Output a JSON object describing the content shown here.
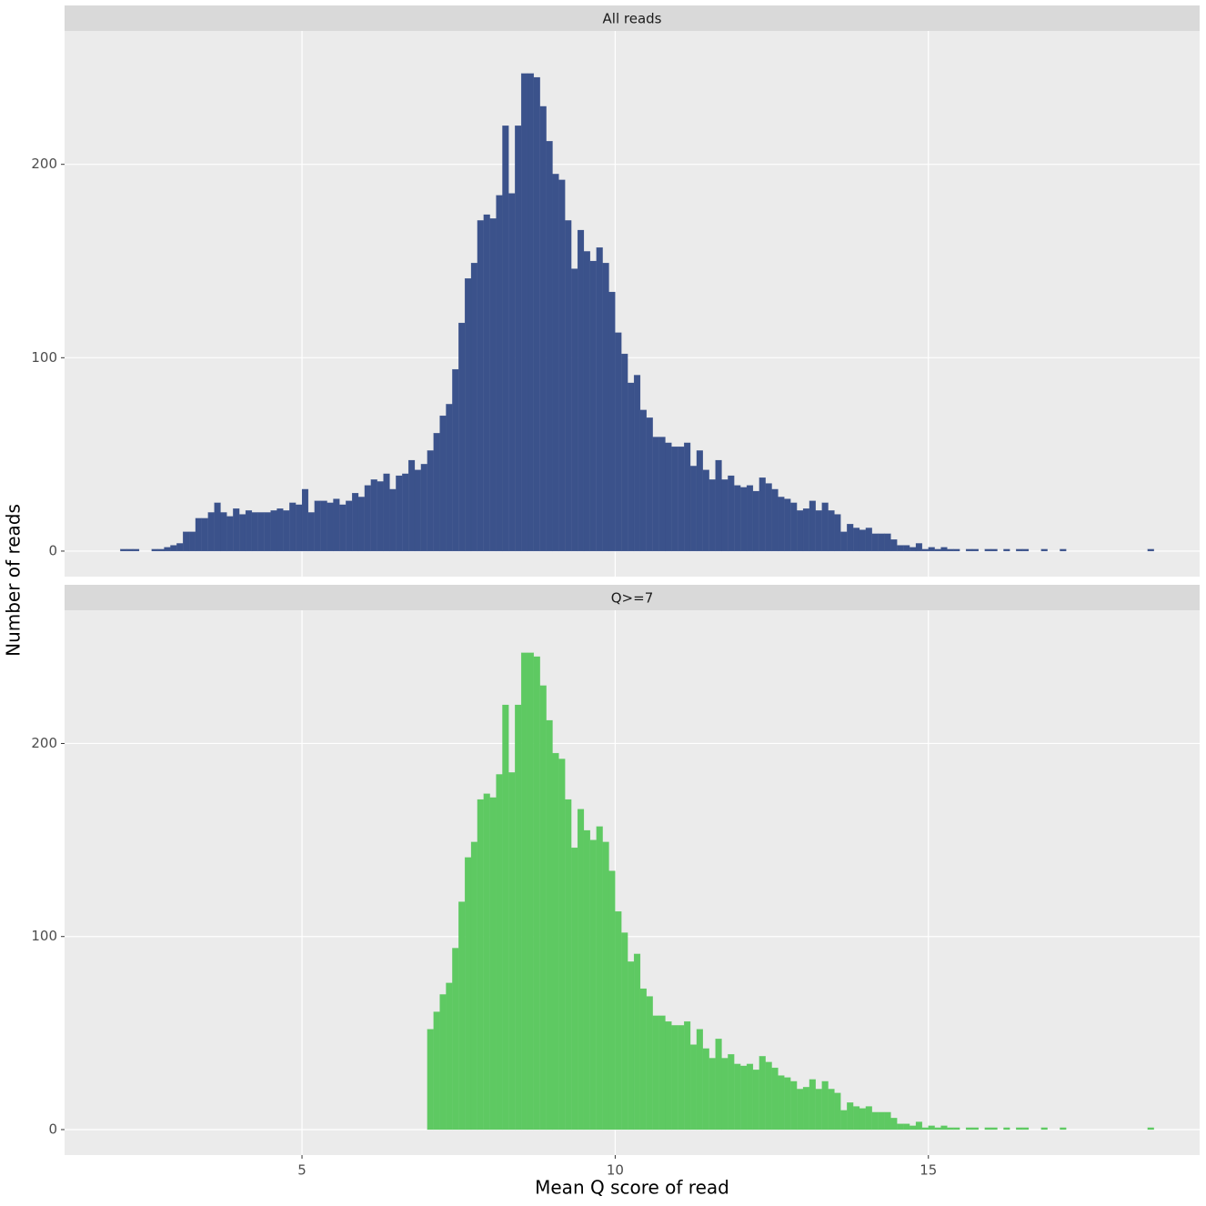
{
  "chart_data": [
    {
      "type": "histogram",
      "title": "All reads",
      "color": "#3b528b",
      "ylabel": "Number of reads",
      "bins": [
        2,
        2.1,
        2.2,
        2.3,
        2.4,
        2.5,
        2.6,
        2.7,
        2.8,
        2.9,
        3,
        3.1,
        3.2,
        3.3,
        3.4,
        3.5,
        3.6,
        3.7,
        3.8,
        3.9,
        4,
        4.1,
        4.2,
        4.3,
        4.4,
        4.5,
        4.6,
        4.7,
        4.8,
        4.9,
        5,
        5.1,
        5.2,
        5.3,
        5.4,
        5.5,
        5.6,
        5.7,
        5.8,
        5.9,
        6,
        6.1,
        6.2,
        6.3,
        6.4,
        6.5,
        6.6,
        6.7,
        6.8,
        6.9,
        7,
        7.1,
        7.2,
        7.3,
        7.4,
        7.5,
        7.6,
        7.7,
        7.8,
        7.9,
        8,
        8.1,
        8.2,
        8.3,
        8.4,
        8.5,
        8.6,
        8.7,
        8.8,
        8.9,
        9,
        9.1,
        9.2,
        9.3,
        9.4,
        9.5,
        9.6,
        9.7,
        9.8,
        9.9,
        10,
        10.1,
        10.2,
        10.3,
        10.4,
        10.5,
        10.6,
        10.7,
        10.8,
        10.9,
        11,
        11.1,
        11.2,
        11.3,
        11.4,
        11.5,
        11.6,
        11.7,
        11.8,
        11.9,
        12,
        12.1,
        12.2,
        12.3,
        12.4,
        12.5,
        12.6,
        12.7,
        12.8,
        12.9,
        13,
        13.1,
        13.2,
        13.3,
        13.4,
        13.5,
        13.6,
        13.7,
        13.8,
        13.9,
        14,
        14.1,
        14.2,
        14.3,
        14.4,
        14.5,
        14.6,
        14.7,
        14.8,
        14.9,
        15,
        15.1,
        15.2,
        15.3,
        15.4,
        15.5,
        15.6,
        15.7,
        15.8,
        15.9,
        16,
        16.1,
        16.2,
        16.3,
        16.4,
        16.5,
        16.6,
        16.7,
        16.8,
        16.9,
        17,
        17.1,
        17.2,
        17.3,
        17.4,
        17.5,
        17.6,
        17.7,
        17.8,
        17.9,
        18,
        18.1,
        18.2,
        18.3,
        18.4,
        18.5,
        18.6
      ],
      "values": [
        0,
        1,
        1,
        1,
        0,
        0,
        1,
        1,
        2,
        3,
        4,
        10,
        10,
        17,
        17,
        20,
        25,
        20,
        18,
        22,
        19,
        21,
        20,
        20,
        20,
        21,
        22,
        21,
        25,
        24,
        32,
        20,
        26,
        26,
        25,
        27,
        24,
        26,
        30,
        28,
        34,
        37,
        36,
        40,
        32,
        39,
        40,
        47,
        42,
        45,
        52,
        61,
        70,
        76,
        94,
        118,
        141,
        149,
        171,
        174,
        172,
        184,
        220,
        185,
        220,
        247,
        247,
        245,
        230,
        212,
        195,
        192,
        171,
        146,
        166,
        155,
        150,
        157,
        149,
        134,
        113,
        102,
        87,
        91,
        73,
        69,
        59,
        59,
        56,
        54,
        54,
        56,
        44,
        52,
        42,
        37,
        47,
        37,
        39,
        34,
        33,
        34,
        31,
        38,
        35,
        32,
        28,
        27,
        25,
        21,
        22,
        26,
        21,
        25,
        21,
        19,
        10,
        14,
        12,
        11,
        12,
        9,
        9,
        9,
        6,
        3,
        3,
        2,
        4,
        1,
        2,
        1,
        2,
        1,
        1,
        0,
        1,
        1,
        0,
        1,
        1,
        0,
        1,
        0,
        1,
        1,
        0,
        0,
        1,
        0,
        0,
        1,
        0,
        0,
        0,
        0,
        0,
        0,
        0,
        0,
        0,
        0,
        0,
        0,
        0,
        1
      ],
      "xlim": [
        1.21,
        19.33
      ],
      "ylim": [
        -13.2,
        269
      ],
      "xticks": [
        5,
        10,
        15
      ],
      "yticks": [
        0,
        100,
        200
      ],
      "grid": true
    },
    {
      "type": "histogram",
      "title": "Q>=7",
      "color": "#5ec962",
      "xlabel": "Mean Q score of read",
      "bins": [
        7,
        7.1,
        7.2,
        7.3,
        7.4,
        7.5,
        7.6,
        7.7,
        7.8,
        7.9,
        8,
        8.1,
        8.2,
        8.3,
        8.4,
        8.5,
        8.6,
        8.7,
        8.8,
        8.9,
        9,
        9.1,
        9.2,
        9.3,
        9.4,
        9.5,
        9.6,
        9.7,
        9.8,
        9.9,
        10,
        10.1,
        10.2,
        10.3,
        10.4,
        10.5,
        10.6,
        10.7,
        10.8,
        10.9,
        11,
        11.1,
        11.2,
        11.3,
        11.4,
        11.5,
        11.6,
        11.7,
        11.8,
        11.9,
        12,
        12.1,
        12.2,
        12.3,
        12.4,
        12.5,
        12.6,
        12.7,
        12.8,
        12.9,
        13,
        13.1,
        13.2,
        13.3,
        13.4,
        13.5,
        13.6,
        13.7,
        13.8,
        13.9,
        14,
        14.1,
        14.2,
        14.3,
        14.4,
        14.5,
        14.6,
        14.7,
        14.8,
        14.9,
        15,
        15.1,
        15.2,
        15.3,
        15.4,
        15.5,
        15.6,
        15.7,
        15.8,
        15.9,
        16,
        16.1,
        16.2,
        16.3,
        16.4,
        16.5,
        16.6,
        16.7,
        16.8,
        16.9,
        17,
        17.1,
        17.2,
        17.3,
        17.4,
        17.5,
        17.6,
        17.7,
        17.8,
        17.9,
        18,
        18.1,
        18.2,
        18.3,
        18.4,
        18.5,
        18.6
      ],
      "values": [
        52,
        61,
        70,
        76,
        94,
        118,
        141,
        149,
        171,
        174,
        172,
        184,
        220,
        185,
        220,
        247,
        247,
        245,
        230,
        212,
        195,
        192,
        171,
        146,
        166,
        155,
        150,
        157,
        149,
        134,
        113,
        102,
        87,
        91,
        73,
        69,
        59,
        59,
        56,
        54,
        54,
        56,
        44,
        52,
        42,
        37,
        47,
        37,
        39,
        34,
        33,
        34,
        31,
        38,
        35,
        32,
        28,
        27,
        25,
        21,
        22,
        26,
        21,
        25,
        21,
        19,
        10,
        14,
        12,
        11,
        12,
        9,
        9,
        9,
        6,
        3,
        3,
        2,
        4,
        1,
        2,
        1,
        2,
        1,
        1,
        0,
        1,
        1,
        0,
        1,
        1,
        0,
        1,
        0,
        1,
        1,
        0,
        0,
        1,
        0,
        0,
        1,
        0,
        0,
        0,
        0,
        0,
        0,
        0,
        0,
        0,
        0,
        0,
        0,
        0,
        1
      ],
      "xlim": [
        1.21,
        19.33
      ],
      "ylim": [
        -13.2,
        269
      ],
      "xticks": [
        5,
        10,
        15
      ],
      "yticks": [
        0,
        100,
        200
      ],
      "grid": true
    }
  ]
}
